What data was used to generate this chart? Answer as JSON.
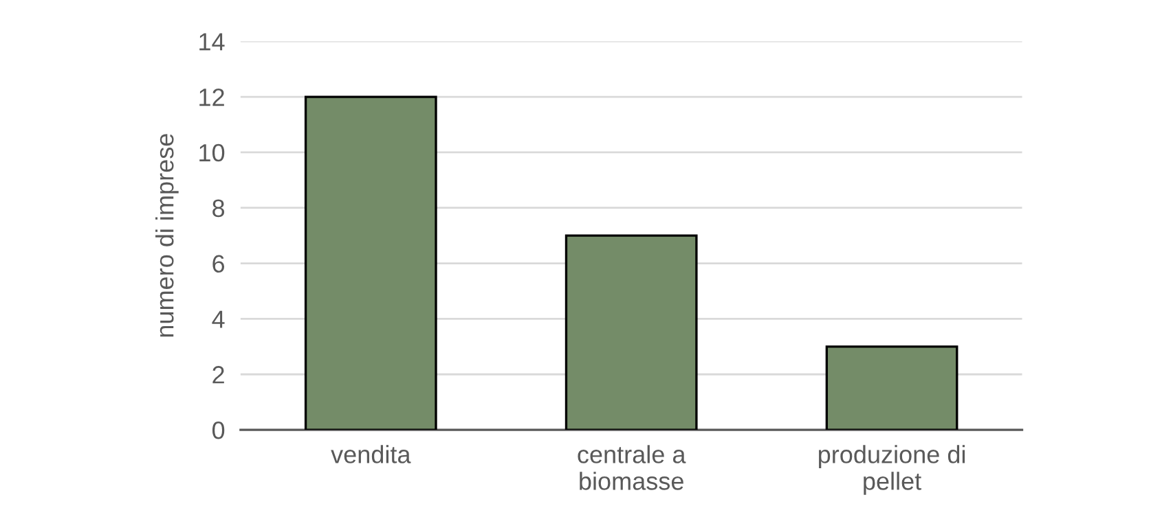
{
  "chart_data": {
    "type": "bar",
    "ylabel": "numero di imprese",
    "categories": [
      "vendita",
      "centrale a\nbiomasse",
      "produzione di\npellet"
    ],
    "values": [
      12,
      7,
      3
    ],
    "color": "#748c68",
    "ylim": [
      0,
      14
    ],
    "yticks": [
      0,
      2,
      4,
      6,
      8,
      10,
      12,
      14
    ],
    "grid": "y",
    "legend": false
  }
}
